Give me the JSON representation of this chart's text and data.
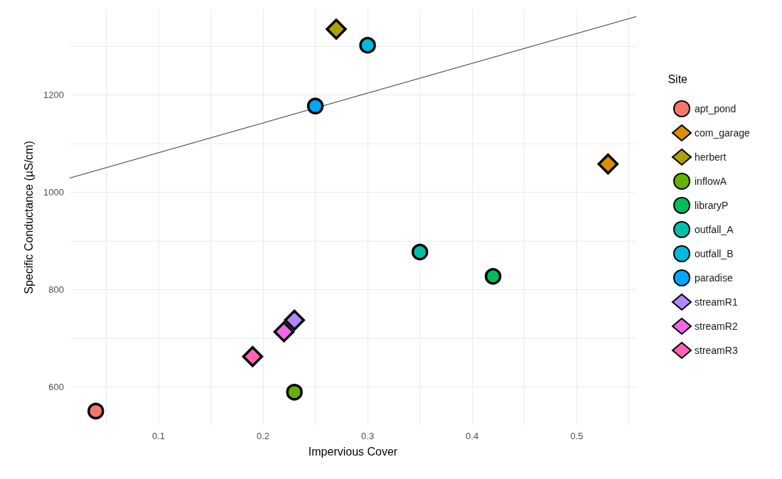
{
  "chart_data": {
    "type": "scatter",
    "xlabel": "Impervious Cover",
    "ylabel": "Specific Conductance (µS/cm)",
    "legend_title": "Site",
    "legend": "right",
    "grid": true,
    "xlim": [
      0.015,
      0.557
    ],
    "ylim": [
      520,
      1376
    ],
    "xticks": [
      {
        "value": 0.05,
        "label": null
      },
      0.1,
      {
        "value": 0.15,
        "label": null
      },
      0.2,
      {
        "value": 0.25,
        "label": null
      },
      0.3,
      {
        "value": 0.35,
        "label": null
      },
      0.4,
      {
        "value": 0.45,
        "label": null
      },
      0.5,
      {
        "value": 0.55,
        "label": null
      }
    ],
    "yticks": [
      600,
      {
        "value": 700,
        "label": null
      },
      800,
      {
        "value": 900,
        "label": null
      },
      1000,
      {
        "value": 1100,
        "label": null
      },
      1200,
      {
        "value": 1300,
        "label": null
      }
    ],
    "series": [
      {
        "name": "apt_pond",
        "color": "#f8766d",
        "marker": "circle",
        "x": [
          0.04
        ],
        "values": [
          550
        ]
      },
      {
        "name": "com_garage",
        "color": "#db8e00",
        "marker": "diamond",
        "x": [
          0.53
        ],
        "values": [
          1058
        ]
      },
      {
        "name": "herbert",
        "color": "#aea200",
        "marker": "diamond",
        "x": [
          0.27
        ],
        "values": [
          1335
        ]
      },
      {
        "name": "inflowA",
        "color": "#64b200",
        "marker": "circle",
        "x": [
          0.23
        ],
        "values": [
          589
        ]
      },
      {
        "name": "libraryP",
        "color": "#00bd5c",
        "marker": "circle",
        "x": [
          0.42
        ],
        "values": [
          827
        ]
      },
      {
        "name": "outfall_A",
        "color": "#00c1a7",
        "marker": "circle",
        "x": [
          0.35
        ],
        "values": [
          877
        ]
      },
      {
        "name": "outfall_B",
        "color": "#00bade",
        "marker": "circle",
        "x": [
          0.3
        ],
        "values": [
          1302
        ]
      },
      {
        "name": "paradise",
        "color": "#00a6ff",
        "marker": "circle",
        "x": [
          0.25
        ],
        "values": [
          1177
        ]
      },
      {
        "name": "streamR1",
        "color": "#b385ff",
        "marker": "diamond",
        "x": [
          0.23
        ],
        "values": [
          737
        ]
      },
      {
        "name": "streamR2",
        "color": "#ef67eb",
        "marker": "diamond",
        "x": [
          0.22
        ],
        "values": [
          713
        ]
      },
      {
        "name": "streamR3",
        "color": "#ff63b6",
        "marker": "diamond",
        "x": [
          0.19
        ],
        "values": [
          662
        ]
      },
      {
        "type": "line",
        "color": "#333333",
        "marker": "none",
        "x": [
          0.015,
          0.557
        ],
        "values": [
          1029,
          1361
        ]
      }
    ]
  }
}
